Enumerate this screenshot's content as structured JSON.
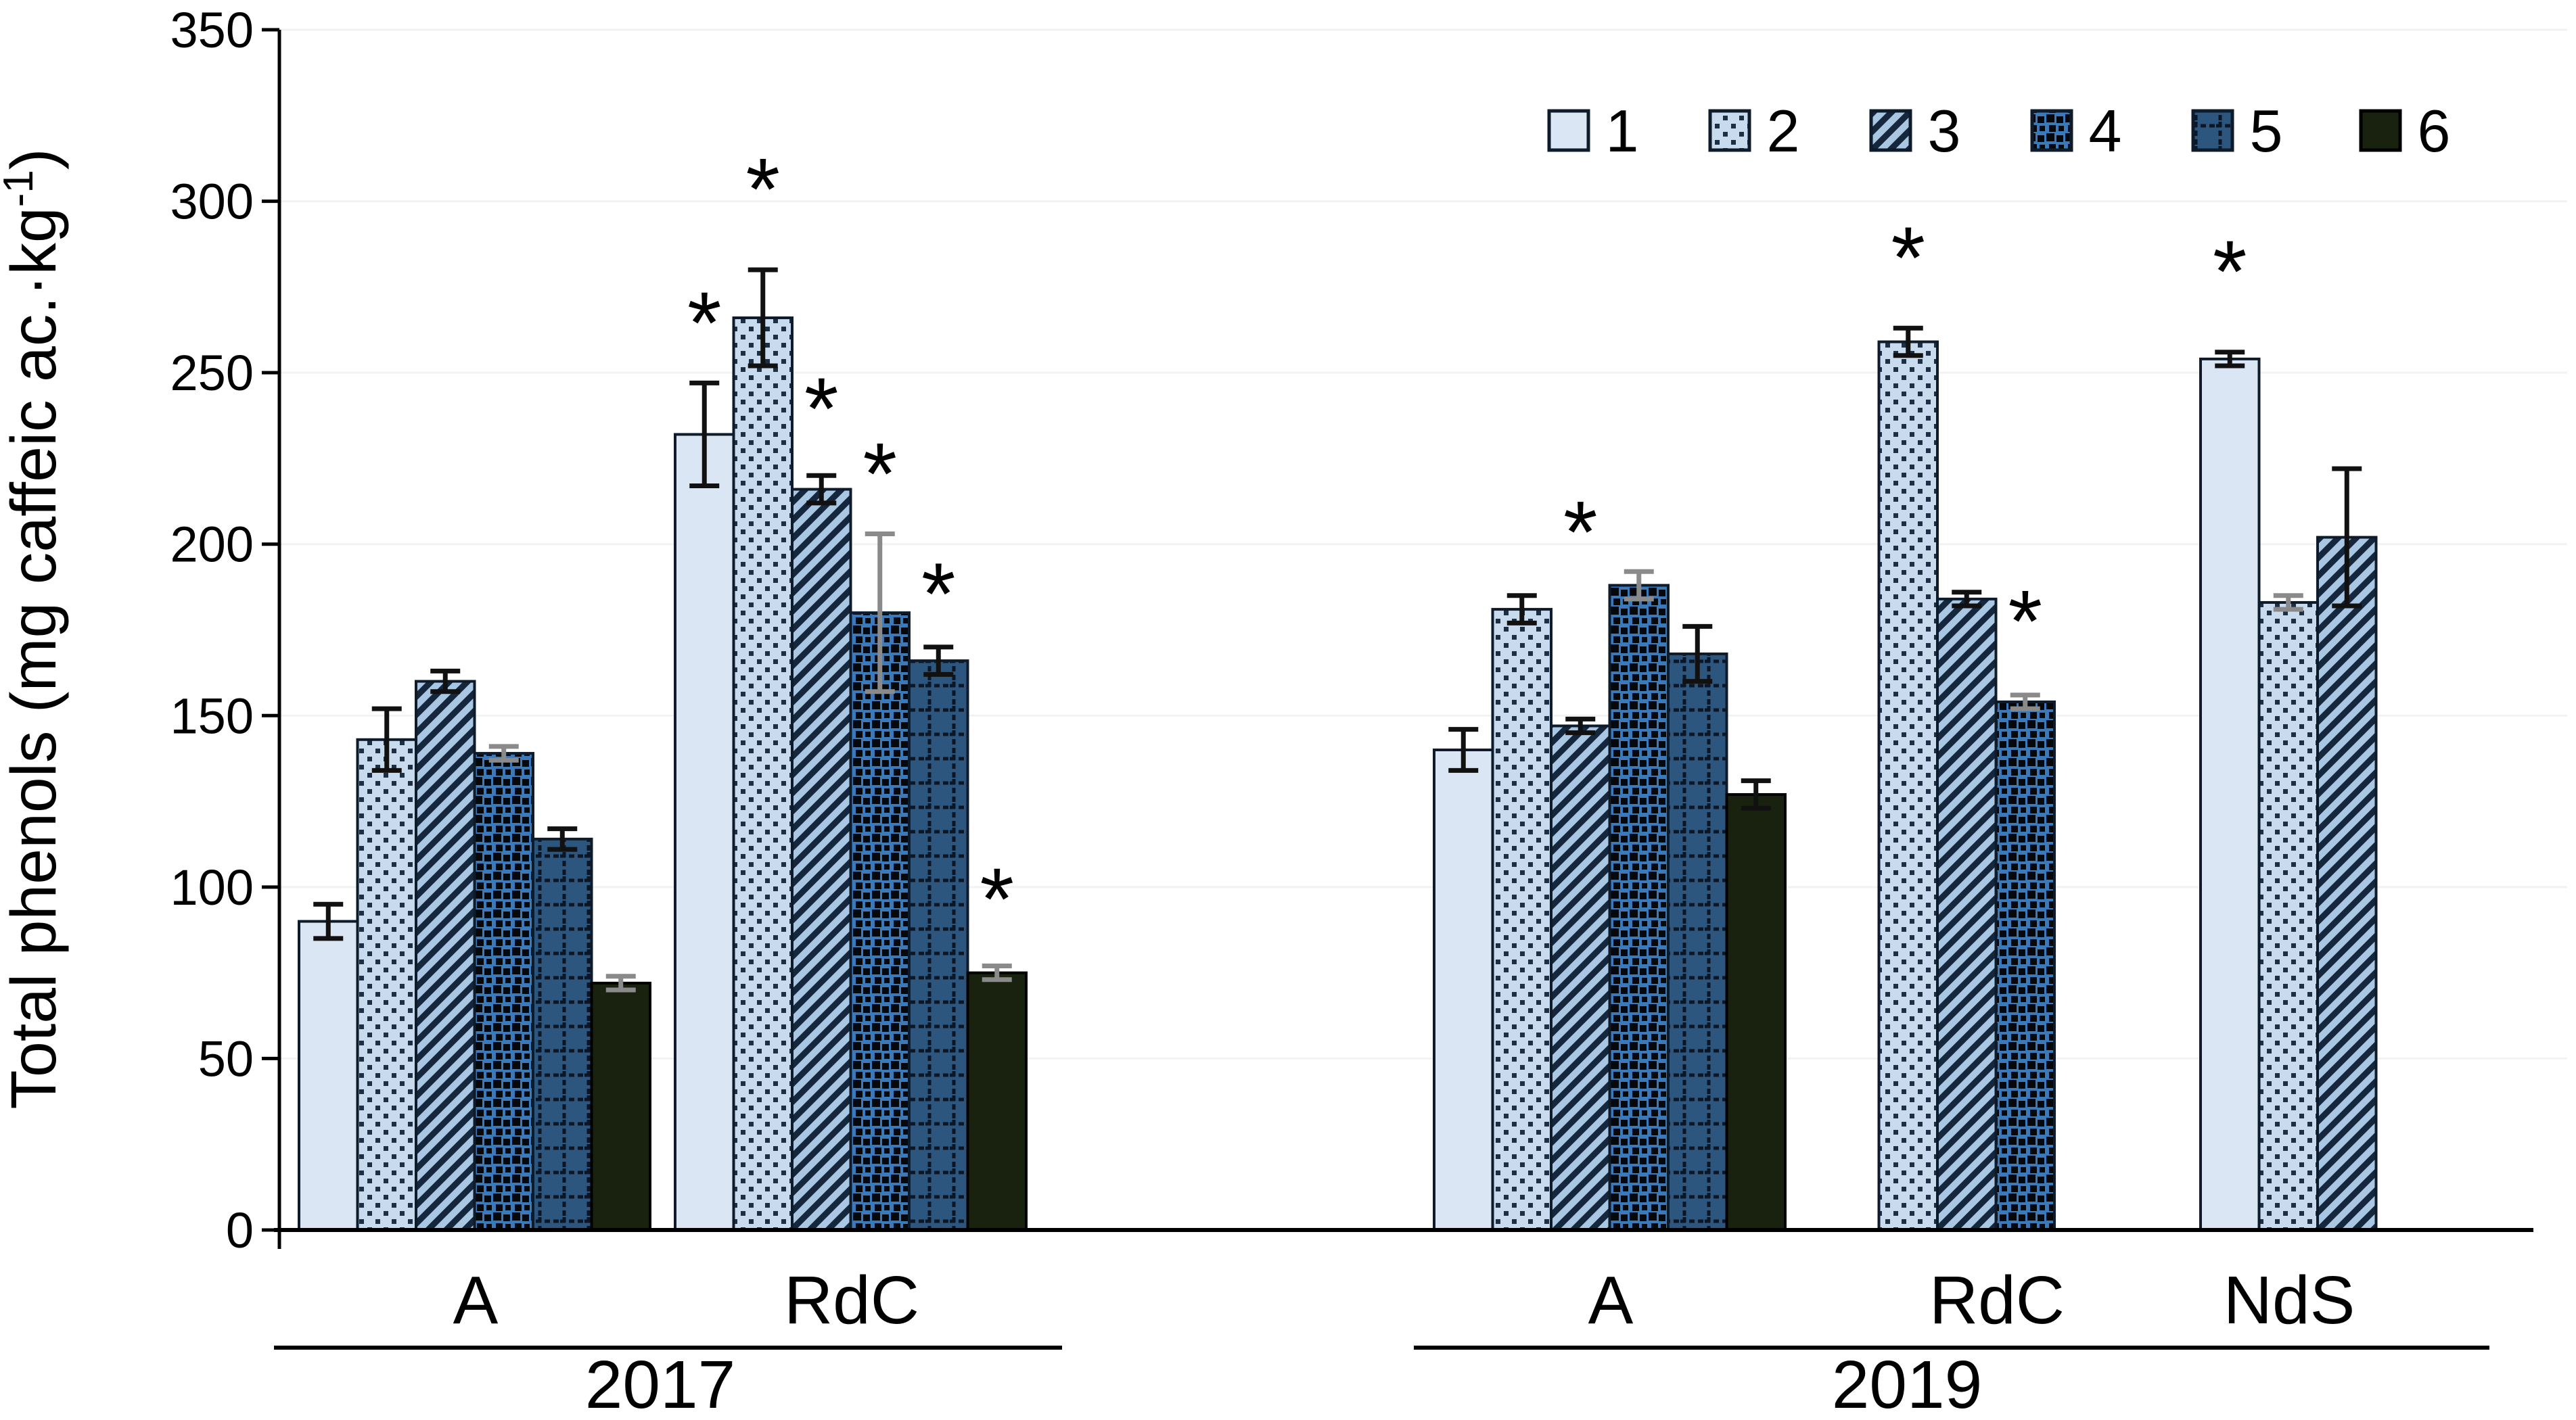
{
  "chart_data": {
    "type": "bar",
    "title": "",
    "ylabel": "Total phenols (mg caffeic ac.·kg⁻¹)",
    "ylabel_parts": {
      "pre": "Total phenols (mg caffeic ac.·kg",
      "sup": "-1",
      "post": ")"
    },
    "ylim": [
      0,
      350
    ],
    "ytick_step": 50,
    "yticks": [
      "0",
      "50",
      "100",
      "150",
      "200",
      "250",
      "300",
      "350"
    ],
    "grid": "horizontal-light",
    "legend_position": "top-right",
    "legend": [
      "1",
      "2",
      "3",
      "4",
      "5",
      "6"
    ],
    "star_symbol": "*",
    "series_styles": [
      {
        "name": "1",
        "type": "solid",
        "bg": "#dae6f3",
        "fg": "#dae6f3",
        "outline": "#0d1b2a"
      },
      {
        "name": "2",
        "type": "dots",
        "bg": "#c8daee",
        "fg": "#1e2e44",
        "outline": "#0d1b2a"
      },
      {
        "name": "3",
        "type": "diag",
        "bg": "#a9c7e3",
        "fg": "#14273d",
        "outline": "#0d1b2a"
      },
      {
        "name": "4",
        "type": "blobs",
        "bg": "#3a79ba",
        "fg": "#06090c",
        "outline": "#0d1b2a"
      },
      {
        "name": "5",
        "type": "plaid",
        "bg": "#2d567e",
        "fg": "#0c1624",
        "outline": "#0d1b2a"
      },
      {
        "name": "6",
        "type": "solid",
        "bg": "#18220f",
        "fg": "#18220f",
        "outline": "#000000"
      }
    ],
    "error_colors": {
      "black": "#111111",
      "gray": "#8a8a8a"
    },
    "groups": [
      {
        "location": "A",
        "year": "2017",
        "slot_offset": 0,
        "bars": [
          {
            "series": "1",
            "value": 90,
            "err": 5
          },
          {
            "series": "2",
            "value": 143,
            "err": 9
          },
          {
            "series": "3",
            "value": 160,
            "err": 3
          },
          {
            "series": "4",
            "value": 139,
            "err": 2,
            "err_gray": true
          },
          {
            "series": "5",
            "value": 114,
            "err": 3
          },
          {
            "series": "6",
            "value": 72,
            "err": 2,
            "err_gray": true
          }
        ]
      },
      {
        "location": "RdC",
        "year": "2017",
        "slot_offset": 0,
        "bars": [
          {
            "series": "1",
            "value": 232,
            "err": 15,
            "star": true,
            "star_y": 268
          },
          {
            "series": "2",
            "value": 266,
            "err": 14,
            "star": true,
            "star_y": 307
          },
          {
            "series": "3",
            "value": 216,
            "err": 4,
            "star": true,
            "star_y": 243
          },
          {
            "series": "4",
            "value": 180,
            "err": 23,
            "err_gray": true,
            "star": true,
            "star_y": 224
          },
          {
            "series": "5",
            "value": 166,
            "err": 4,
            "star": true,
            "star_y": 189
          },
          {
            "series": "6",
            "value": 75,
            "err": 2,
            "err_gray": true,
            "star": true,
            "star_y": 100
          }
        ]
      },
      {
        "location": "A",
        "year": "2019",
        "slot_offset": 0,
        "bars": [
          {
            "series": "1",
            "value": 140,
            "err": 6
          },
          {
            "series": "2",
            "value": 181,
            "err": 4
          },
          {
            "series": "3",
            "value": 147,
            "err": 2,
            "star": true,
            "star_y": 207
          },
          {
            "series": "4",
            "value": 188,
            "err": 4,
            "err_gray": true
          },
          {
            "series": "5",
            "value": 168,
            "err": 8
          },
          {
            "series": "6",
            "value": 127,
            "err": 4
          }
        ]
      },
      {
        "location": "RdC",
        "year": "2019",
        "slot_offset": 1,
        "bars": [
          {
            "series": "2",
            "value": 259,
            "err": 4,
            "star": true,
            "star_y": 287
          },
          {
            "series": "3",
            "value": 184,
            "err": 2
          },
          {
            "series": "4",
            "value": 154,
            "err": 2,
            "err_gray": true,
            "star": true,
            "star_y": 181
          }
        ]
      },
      {
        "location": "NdS",
        "year": "2019",
        "slot_offset": 0,
        "bars": [
          {
            "series": "1",
            "value": 254,
            "err": 2,
            "star": true,
            "star_y": 283
          },
          {
            "series": "2",
            "value": 183,
            "err": 2,
            "err_gray": true
          },
          {
            "series": "3",
            "value": 202,
            "err": 20
          }
        ]
      }
    ],
    "year_bands": [
      {
        "label": "2017",
        "group_indexes": [
          0,
          1
        ]
      },
      {
        "label": "2019",
        "group_indexes": [
          2,
          3,
          4
        ]
      }
    ]
  }
}
